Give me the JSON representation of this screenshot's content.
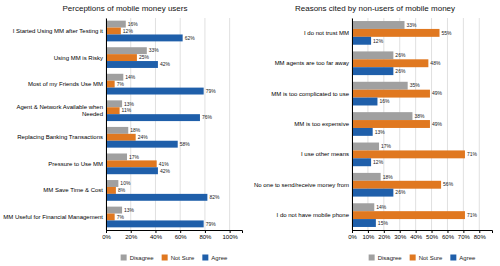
{
  "chart_data": [
    {
      "type": "bar",
      "orientation": "horizontal",
      "title": "Perceptions of mobile money users",
      "categories": [
        "I Started Using MM after Testing it",
        "Using MM is Risky",
        "Most of my Friends Use MM",
        "Agent & Network Available when\nNeeded",
        "Replacing Banking Transactions",
        "Pressure to Use MM",
        "MM Save Time & Cost",
        "MM Useful for Financial Management"
      ],
      "series": [
        {
          "name": "Disagree",
          "color": "#a0a0a0",
          "values": [
            16,
            33,
            14,
            13,
            18,
            17,
            10,
            13
          ],
          "value_labels": [
            "16%",
            "33%",
            "14%",
            "13%",
            "18%",
            "17%",
            "10%",
            "13%"
          ]
        },
        {
          "name": "Not Sure",
          "color": "#e07820",
          "values": [
            12,
            25,
            7,
            11,
            24,
            41,
            8,
            7
          ],
          "value_labels": [
            "12%",
            "25%",
            "7%",
            "11%",
            "24%",
            "41%",
            "8%",
            "7%"
          ]
        },
        {
          "name": "Agree",
          "color": "#1f5faa",
          "values": [
            62,
            42,
            79,
            76,
            58,
            42,
            82,
            79
          ],
          "value_labels": [
            "62%",
            "42%",
            "79%",
            "76%",
            "58%",
            "42%",
            "82%",
            "79%"
          ]
        }
      ],
      "xlim": [
        0,
        110
      ],
      "xticks": [
        {
          "value": 0,
          "label": "0%"
        },
        {
          "value": 20,
          "label": "20%"
        },
        {
          "value": 40,
          "label": "40%"
        },
        {
          "value": 60,
          "label": "60%"
        },
        {
          "value": 80,
          "label": "80%"
        },
        {
          "value": 100,
          "label": "100%"
        }
      ],
      "grid": true,
      "legend": "bottom",
      "data_labels": true
    },
    {
      "type": "bar",
      "orientation": "horizontal",
      "title": "Reasons cited by non-users of mobile money",
      "categories": [
        "I do not trust MM",
        "MM agents are too far away",
        "MM is too complicated to use",
        "MM is too expensive",
        "I use other means",
        "No one to send/receive money from",
        "I do not have mobile phone"
      ],
      "series": [
        {
          "name": "Disagree",
          "color": "#a0a0a0",
          "values": [
            33,
            26,
            35,
            38,
            17,
            18,
            14
          ],
          "value_labels": [
            "33%",
            "26%",
            "35%",
            "38%",
            "17%",
            "18%",
            "14%"
          ]
        },
        {
          "name": "Not Sure",
          "color": "#e07820",
          "values": [
            55,
            48,
            49,
            49,
            71,
            56,
            71
          ],
          "value_labels": [
            "55%",
            "48%",
            "49%",
            "49%",
            "71%",
            "56%",
            "71%"
          ]
        },
        {
          "name": "Agree",
          "color": "#1f5faa",
          "values": [
            12,
            26,
            16,
            13,
            12,
            26,
            15
          ],
          "value_labels": [
            "12%",
            "26%",
            "16%",
            "13%",
            "12%",
            "26%",
            "15%"
          ]
        }
      ],
      "xlim": [
        0,
        88
      ],
      "xticks": [
        {
          "value": 0,
          "label": "0%"
        },
        {
          "value": 10,
          "label": "10%"
        },
        {
          "value": 20,
          "label": "20%"
        },
        {
          "value": 30,
          "label": "30%"
        },
        {
          "value": 40,
          "label": "40%"
        },
        {
          "value": 50,
          "label": "50%"
        },
        {
          "value": 60,
          "label": "60%"
        },
        {
          "value": 70,
          "label": "70%"
        },
        {
          "value": 80,
          "label": "80%"
        }
      ],
      "grid": true,
      "legend": "bottom",
      "data_labels": true
    }
  ]
}
